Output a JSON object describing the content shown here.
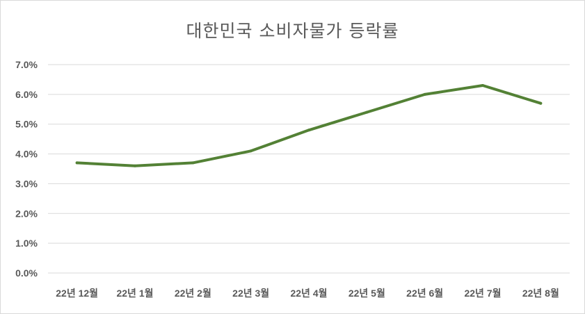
{
  "chart_data": {
    "type": "line",
    "title": "대한민국 소비자물가 등락률",
    "xlabel": "",
    "ylabel": "",
    "categories": [
      "22년 12월",
      "22년 1월",
      "22년 2월",
      "22년 3월",
      "22년 4월",
      "22년 5월",
      "22년 6월",
      "22년 7월",
      "22년 8월"
    ],
    "series": [
      {
        "values": [
          3.7,
          3.6,
          3.7,
          4.1,
          4.8,
          5.4,
          6.0,
          6.3,
          5.7
        ]
      }
    ],
    "ylim": [
      0,
      7
    ],
    "y_ticks": [
      "0.0%",
      "1.0%",
      "2.0%",
      "3.0%",
      "4.0%",
      "5.0%",
      "6.0%",
      "7.0%"
    ],
    "grid": true,
    "legend": "none",
    "colors": {
      "line": "#538135",
      "grid": "#d9d9d9",
      "text": "#595959"
    }
  }
}
